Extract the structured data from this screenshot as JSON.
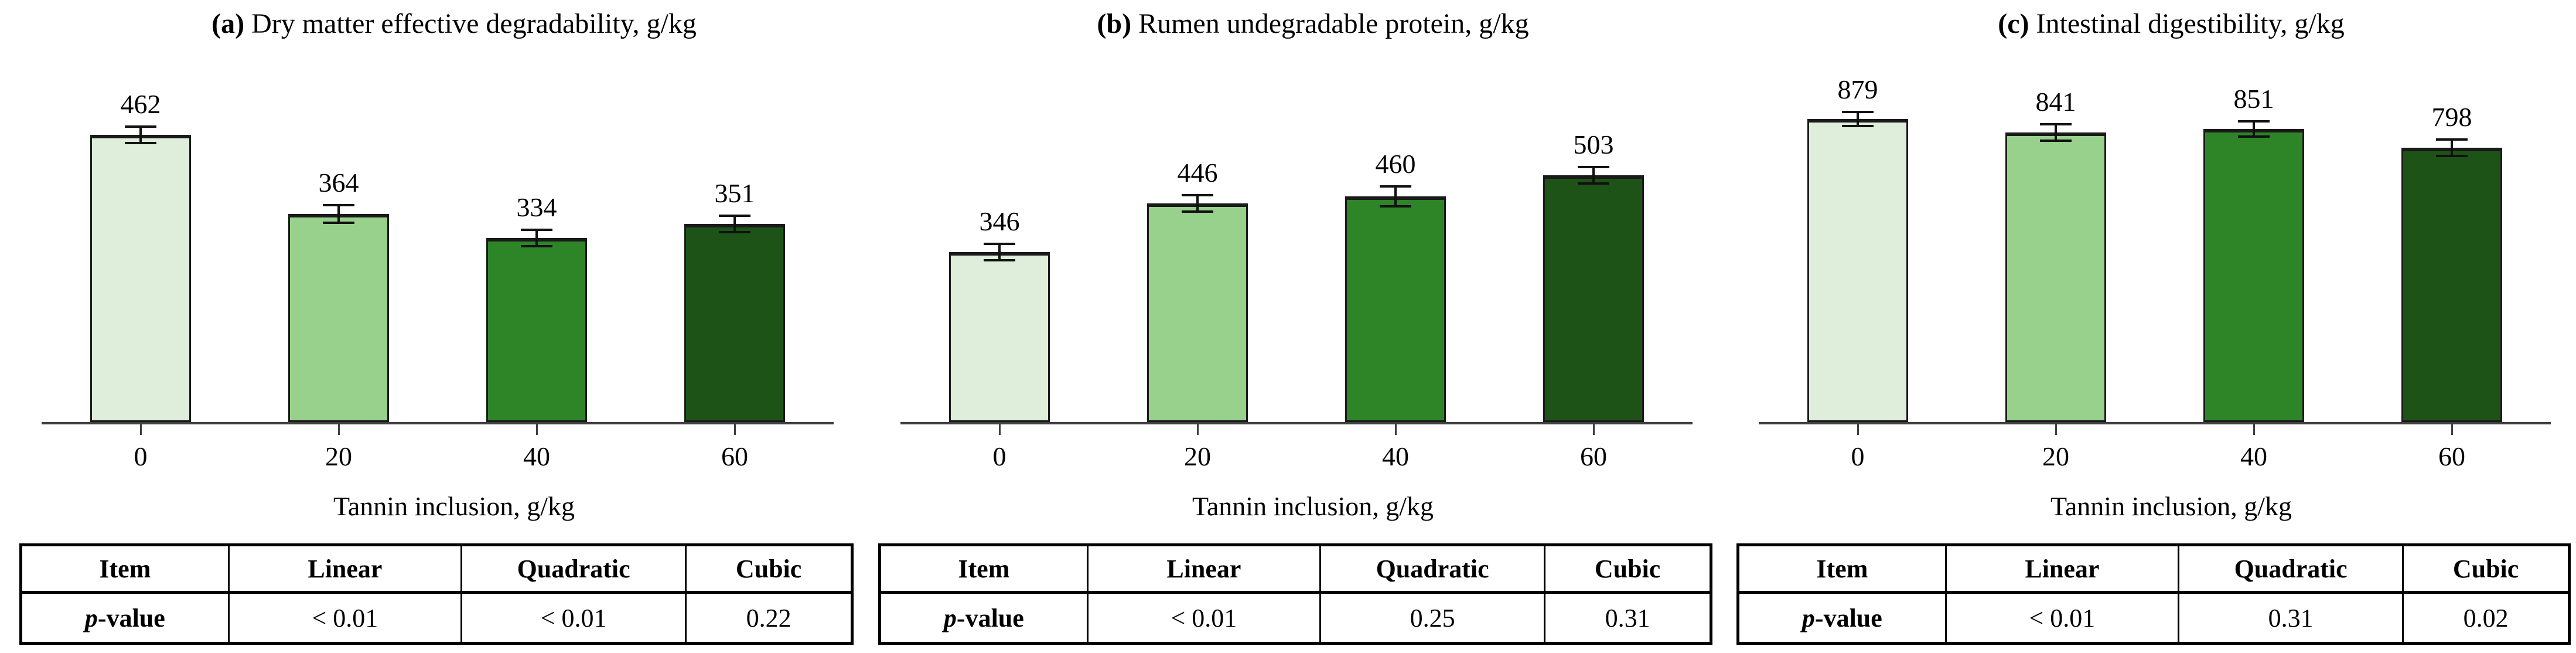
{
  "chart_data": [
    {
      "type": "bar",
      "panel": "a",
      "title": "(a) Dry matter effective degradability, g/kg",
      "title_parts": {
        "bold": "(a)",
        "rest": " Dry matter effective degradability, g/kg"
      },
      "categories": [
        "0",
        "20",
        "40",
        "60"
      ],
      "values": [
        462,
        364,
        334,
        351
      ],
      "errors": [
        10,
        11,
        10,
        10
      ],
      "xlabel": "Tannin inclusion, g/kg",
      "ylabel": "",
      "ylim": [
        105,
        535
      ],
      "grid": false,
      "bar_colors": [
        "#dfeeda",
        "#97d18c",
        "#2e8528",
        "#1d5317"
      ],
      "regression_table": {
        "headers": [
          "Item",
          "Linear",
          "Quadratic",
          "Cubic"
        ],
        "row_label_italic": "p",
        "row_label_rest": "-value",
        "p_values": [
          "< 0.01",
          "< 0.01",
          "0.22"
        ]
      }
    },
    {
      "type": "bar",
      "panel": "b",
      "title": "(b) Rumen undegradable protein, g/kg",
      "title_parts": {
        "bold": "(b)",
        "rest": " Rumen undegradable protein, g/kg"
      },
      "categories": [
        "0",
        "20",
        "40",
        "60"
      ],
      "values": [
        346,
        446,
        460,
        503
      ],
      "errors": [
        17,
        17,
        20,
        17
      ],
      "xlabel": "Tannin inclusion, g/kg",
      "ylabel": "",
      "ylim": [
        0,
        705
      ],
      "grid": false,
      "bar_colors": [
        "#dfeeda",
        "#97d18c",
        "#2e8528",
        "#1d5317"
      ],
      "regression_table": {
        "headers": [
          "Item",
          "Linear",
          "Quadratic",
          "Cubic"
        ],
        "row_label_italic": "p",
        "row_label_rest": "-value",
        "p_values": [
          "< 0.01",
          "0.25",
          "0.31"
        ]
      }
    },
    {
      "type": "bar",
      "panel": "c",
      "title": "(c) Intestinal digestibility, g/kg",
      "title_parts": {
        "bold": "(c)",
        "rest": " Intestinal digestibility, g/kg"
      },
      "categories": [
        "0",
        "20",
        "40",
        "60"
      ],
      "values": [
        879,
        841,
        851,
        798
      ],
      "errors": [
        20,
        23,
        21,
        23
      ],
      "xlabel": "Tannin inclusion, g/kg",
      "ylabel": "",
      "ylim": [
        20,
        1000
      ],
      "grid": false,
      "bar_colors": [
        "#dfeeda",
        "#97d18c",
        "#2e8528",
        "#1d5317"
      ],
      "regression_table": {
        "headers": [
          "Item",
          "Linear",
          "Quadratic",
          "Cubic"
        ],
        "row_label_italic": "p",
        "row_label_rest": "-value",
        "p_values": [
          "< 0.01",
          "0.31",
          "0.02"
        ]
      }
    }
  ]
}
